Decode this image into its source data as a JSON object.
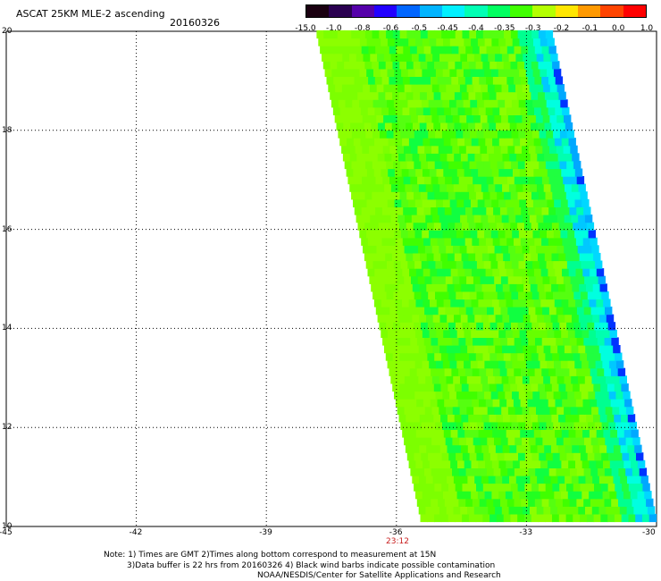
{
  "title": "ASCAT 25KM MLE-2 ascending",
  "date": "20160326",
  "colorbar": {
    "labels": [
      "-15.0",
      "-1.0",
      "-0.8",
      "-0.6",
      "-0.5",
      "-0.45",
      "-0.4",
      "-0.35",
      "-0.3",
      "-0.2",
      "-0.1",
      "0.0",
      "1.0"
    ],
    "colors": [
      "#1a0010",
      "#2a0050",
      "#5500aa",
      "#2200ff",
      "#0066ff",
      "#00b4ff",
      "#00f0ff",
      "#00ffb4",
      "#00ff60",
      "#40ff00",
      "#b4ff00",
      "#ffe600",
      "#ff9900",
      "#ff4400",
      "#ff0000"
    ]
  },
  "map": {
    "lon_ticks": [
      "-45",
      "-42",
      "-39",
      "-36",
      "-33",
      "-30"
    ],
    "lat_ticks": [
      "20",
      "18",
      "16",
      "14",
      "12",
      "10"
    ],
    "lon_range": [
      -45,
      -30
    ],
    "lat_range": [
      10,
      20
    ],
    "swath_time": "23:12"
  },
  "notes": {
    "line1": "Note: 1) Times are GMT 2)Times along bottom correspond to measurement at 15N",
    "line2": "3)Data buffer is 22 hrs from 20160326 4) Black wind barbs indicate possible contamination",
    "line3": "NOAA/NESDIS/Center for Satellite Applications and Research"
  }
}
